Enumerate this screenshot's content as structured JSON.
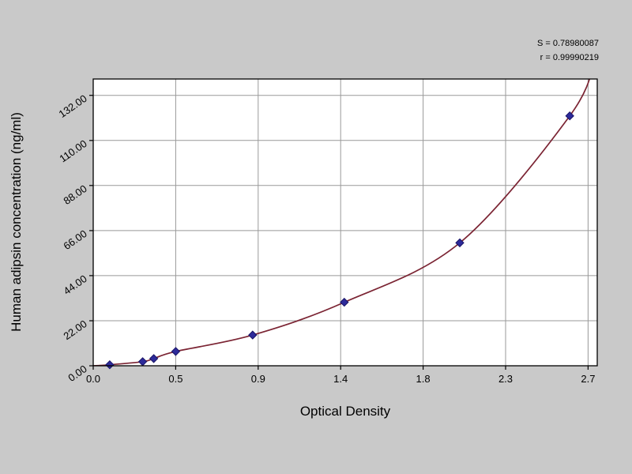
{
  "stats": {
    "s_line": "S = 0.78980087",
    "r_line": "r = 0.99990219"
  },
  "chart_data": {
    "type": "scatter",
    "title": "",
    "xlabel": "Optical Density",
    "ylabel": "Human adipsin concentration (ng/ml)",
    "x": [
      0.09,
      0.27,
      0.33,
      0.45,
      0.87,
      1.37,
      2.0,
      2.6
    ],
    "y": [
      0.5,
      2.0,
      3.5,
      7.0,
      15.0,
      31.0,
      60.0,
      122.0
    ],
    "curve": {
      "type": "smooth-through-points",
      "start": [
        0.0,
        0.0
      ],
      "extend_to": [
        2.74,
        150
      ]
    },
    "xlim": [
      0,
      2.75
    ],
    "ylim": [
      0,
      140
    ],
    "x_ticks": [
      0,
      0.45,
      0.9,
      1.35,
      1.8,
      2.25,
      2.7
    ],
    "x_tick_labels": [
      "0.0",
      "0.5",
      "0.9",
      "1.4",
      "1.8",
      "2.3",
      "2.7"
    ],
    "y_ticks": [
      0,
      22,
      44,
      66,
      88,
      110,
      132
    ],
    "y_tick_labels": [
      "0.00",
      "22.00",
      "44.00",
      "66.00",
      "88.00",
      "110.00",
      "132.00"
    ],
    "grid": true,
    "legend": null,
    "colors": {
      "page_bg": "#c9c9c9",
      "plot_bg": "#ffffff",
      "grid": "#999999",
      "border": "#000000",
      "curve": "#7b2433",
      "point_fill": "#2d2a9a",
      "point_stroke": "#191466"
    }
  }
}
